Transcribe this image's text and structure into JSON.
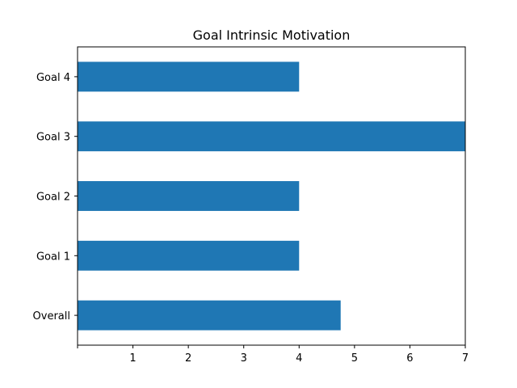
{
  "chart_data": {
    "type": "bar",
    "orientation": "horizontal",
    "title": "Goal Intrinsic Motivation",
    "xlabel": "",
    "ylabel": "",
    "categories": [
      "Overall",
      "Goal 1",
      "Goal 2",
      "Goal 3",
      "Goal 4"
    ],
    "values": [
      4.75,
      4,
      4,
      7,
      4
    ],
    "xlim": [
      0,
      7
    ],
    "x_ticks": [
      1,
      2,
      3,
      4,
      5,
      6,
      7
    ],
    "grid": false,
    "legend": "none",
    "bar_color": "#1f77b4"
  }
}
